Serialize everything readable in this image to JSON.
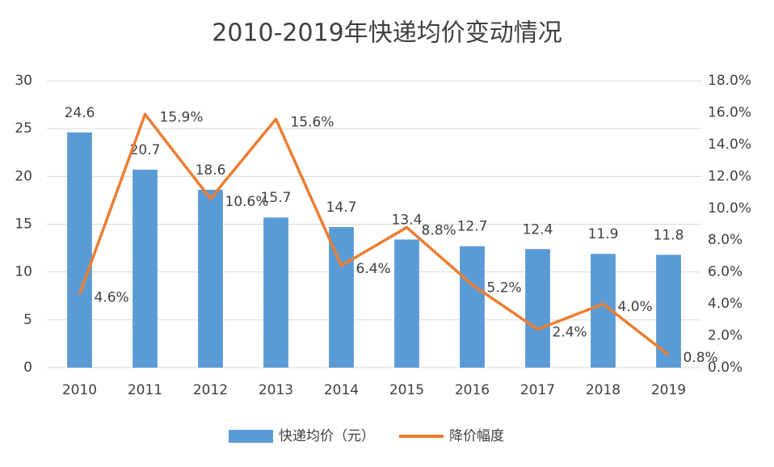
{
  "chart_data": {
    "type": "bar",
    "title": "2010-2019年快递均价变动情况",
    "categories": [
      "2010",
      "2011",
      "2012",
      "2013",
      "2014",
      "2015",
      "2016",
      "2017",
      "2018",
      "2019"
    ],
    "series": [
      {
        "name": "快递均价（元）",
        "type": "bar",
        "color": "#5b9bd5",
        "values": [
          24.6,
          20.7,
          18.6,
          15.7,
          14.7,
          13.4,
          12.7,
          12.4,
          11.9,
          11.8
        ]
      },
      {
        "name": "降价幅度",
        "type": "line",
        "axis": "y2",
        "color": "#ed7d31",
        "values": [
          4.6,
          15.9,
          10.6,
          15.6,
          6.4,
          8.8,
          5.2,
          2.4,
          4.0,
          0.8
        ],
        "value_labels": [
          "4.6%",
          "15.9%",
          "10.6%",
          "15.6%",
          "6.4%",
          "8.8%",
          "5.2%",
          "2.4%",
          "4.0%",
          "0.8%"
        ]
      }
    ],
    "ylim": [
      0,
      30
    ],
    "yticks": [
      0,
      5,
      10,
      15,
      20,
      25,
      30
    ],
    "y2lim": [
      0,
      18
    ],
    "y2ticks": [
      {
        "value": 0,
        "label": "0.0%"
      },
      {
        "value": 2,
        "label": "2.0%"
      },
      {
        "value": 4,
        "label": "4.0%"
      },
      {
        "value": 6,
        "label": "6.0%"
      },
      {
        "value": 8,
        "label": "8.0%"
      },
      {
        "value": 10,
        "label": "10.0%"
      },
      {
        "value": 12,
        "label": "12.0%"
      },
      {
        "value": 14,
        "label": "14.0%"
      },
      {
        "value": 16,
        "label": "16.0%"
      },
      {
        "value": 18,
        "label": "18.0%"
      }
    ],
    "grid": true,
    "legend": "bottom"
  }
}
